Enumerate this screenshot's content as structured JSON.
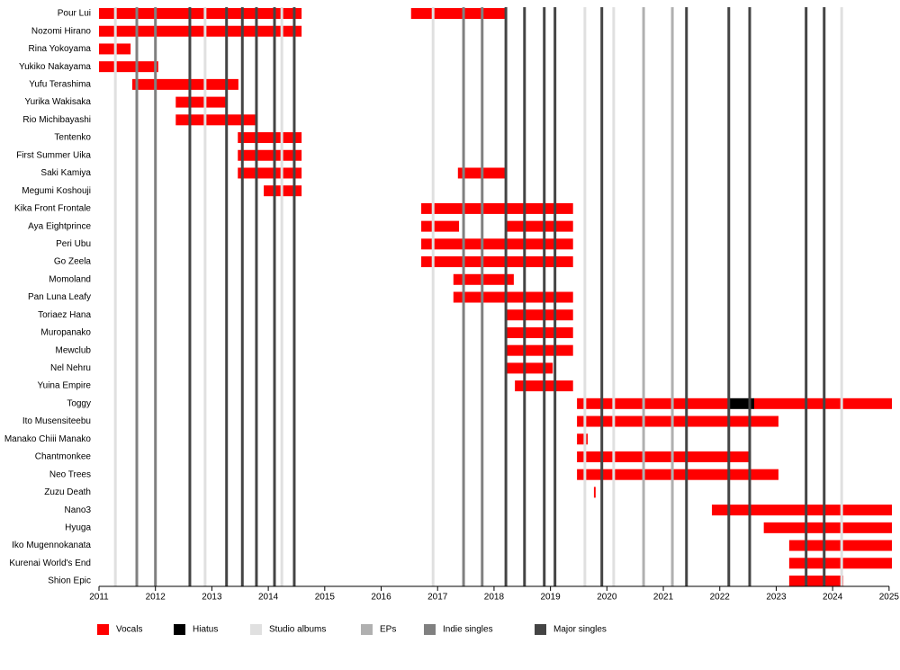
{
  "chart_data": {
    "type": "timeline",
    "categories": [
      "Pour Lui",
      "Nozomi Hirano",
      "Rina Yokoyama",
      "Yukiko Nakayama",
      "Yufu Terashima",
      "Yurika Wakisaka",
      "Rio Michibayashi",
      "Tentenko",
      "First Summer Uika",
      "Saki Kamiya",
      "Megumi Koshouji",
      "Kika Front Frontale",
      "Aya Eightprince",
      "Peri Ubu",
      "Go Zeela",
      "Momoland",
      "Pan Luna Leafy",
      "Toriaez Hana",
      "Muropanako",
      "Mewclub",
      "Nel Nehru",
      "Yuina Empire",
      "Toggy",
      "Ito Musensiteebu",
      "Manako Chiii Manako",
      "Chantmonkee",
      "Neo Trees",
      "Zuzu Death",
      "Nano3",
      "Hyuga",
      "Iko Mugennokanata",
      "Kurenai World's End",
      "Shion Epic"
    ],
    "series": [
      {
        "name": "Vocals",
        "color": "#ff0000",
        "values": [
          [
            [
              2011.0,
              2014.59
            ],
            [
              2016.53,
              2018.22
            ]
          ],
          [
            [
              2011.0,
              2014.59
            ]
          ],
          [
            [
              2011.0,
              2011.56
            ]
          ],
          [
            [
              2011.0,
              2012.05
            ]
          ],
          [
            [
              2011.59,
              2013.47
            ]
          ],
          [
            [
              2012.36,
              2013.28
            ]
          ],
          [
            [
              2012.36,
              2013.79
            ]
          ],
          [
            [
              2013.46,
              2014.59
            ]
          ],
          [
            [
              2013.46,
              2014.59
            ]
          ],
          [
            [
              2013.46,
              2014.59
            ],
            [
              2017.36,
              2018.22
            ]
          ],
          [
            [
              2013.92,
              2014.59
            ]
          ],
          [
            [
              2016.71,
              2019.4
            ]
          ],
          [
            [
              2016.71,
              2017.38
            ],
            [
              2018.22,
              2019.4
            ]
          ],
          [
            [
              2016.71,
              2019.4
            ]
          ],
          [
            [
              2016.71,
              2019.4
            ]
          ],
          [
            [
              2017.28,
              2018.35
            ]
          ],
          [
            [
              2017.28,
              2019.4
            ]
          ],
          [
            [
              2018.22,
              2019.4
            ]
          ],
          [
            [
              2018.22,
              2019.4
            ]
          ],
          [
            [
              2018.22,
              2019.4
            ]
          ],
          [
            [
              2018.22,
              2019.04
            ]
          ],
          [
            [
              2018.37,
              2019.4
            ]
          ],
          [
            [
              2019.47,
              2022.16
            ],
            [
              2022.61,
              2025.05
            ]
          ],
          [
            [
              2019.47,
              2023.04
            ]
          ],
          [
            [
              2019.47,
              2019.66
            ]
          ],
          [
            [
              2019.47,
              2022.55
            ]
          ],
          [
            [
              2019.47,
              2023.04
            ]
          ],
          [
            [
              2019.77,
              2019.8
            ]
          ],
          [
            [
              2021.86,
              2025.05
            ]
          ],
          [
            [
              2022.78,
              2025.05
            ]
          ],
          [
            [
              2023.23,
              2025.05
            ]
          ],
          [
            [
              2023.23,
              2025.05
            ]
          ],
          [
            [
              2023.23,
              2024.19
            ]
          ]
        ]
      },
      {
        "name": "Hiatus",
        "color": "#000000",
        "values": [
          null,
          null,
          null,
          null,
          null,
          null,
          null,
          null,
          null,
          null,
          null,
          null,
          null,
          null,
          null,
          null,
          null,
          null,
          null,
          null,
          null,
          null,
          [
            [
              2022.16,
              2022.61
            ]
          ],
          null,
          null,
          null,
          null,
          null,
          null,
          null,
          null,
          null,
          null
        ]
      }
    ],
    "events": [
      {
        "name": "Studio albums",
        "color": "#e0e0e0",
        "x": [
          2011.29,
          2012.88,
          2014.24,
          2016.92,
          2019.61,
          2020.12,
          2024.16
        ]
      },
      {
        "name": "EPs",
        "color": "#b0b0b0",
        "x": [
          2020.65,
          2021.16
        ]
      },
      {
        "name": "Indie singles",
        "color": "#808080",
        "x": [
          2011.67,
          2012.0,
          2017.46,
          2017.79
        ]
      },
      {
        "name": "Major singles",
        "color": "#444444",
        "x": [
          2012.61,
          2013.26,
          2013.54,
          2013.79,
          2014.11,
          2014.46,
          2018.21,
          2018.54,
          2018.89,
          2019.08,
          2019.91,
          2021.41,
          2022.16,
          2022.53,
          2023.53,
          2023.85
        ]
      }
    ],
    "xlim": [
      2011,
      2025.05
    ],
    "xticks": [
      2011,
      2012,
      2013,
      2014,
      2015,
      2016,
      2017,
      2018,
      2019,
      2020,
      2021,
      2022,
      2023,
      2024,
      2025
    ]
  }
}
